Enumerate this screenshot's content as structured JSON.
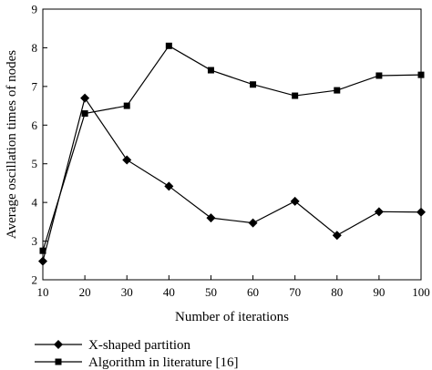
{
  "chart_data": {
    "type": "line",
    "title": "",
    "xlabel": "Number of iterations",
    "ylabel": "Average oscillation times of nodes",
    "x": [
      10,
      20,
      30,
      40,
      50,
      60,
      70,
      80,
      90,
      100
    ],
    "xlim": [
      10,
      100
    ],
    "ylim": [
      2,
      9
    ],
    "xticks": [
      10,
      20,
      30,
      40,
      50,
      60,
      70,
      80,
      90,
      100
    ],
    "yticks": [
      2,
      3,
      4,
      5,
      6,
      7,
      8,
      9
    ],
    "grid": false,
    "legend_placement": "bottom-left, below plot",
    "series": [
      {
        "name": "X-shaped partition",
        "marker": "diamond",
        "color": "#000000",
        "values": [
          2.48,
          6.7,
          5.1,
          4.42,
          3.6,
          3.47,
          4.03,
          3.15,
          3.76,
          3.75
        ]
      },
      {
        "name": "Algorithm in literature [16]",
        "marker": "square",
        "color": "#000000",
        "values": [
          2.75,
          6.3,
          6.5,
          8.05,
          7.42,
          7.05,
          6.76,
          6.9,
          7.28,
          7.3
        ]
      }
    ]
  }
}
